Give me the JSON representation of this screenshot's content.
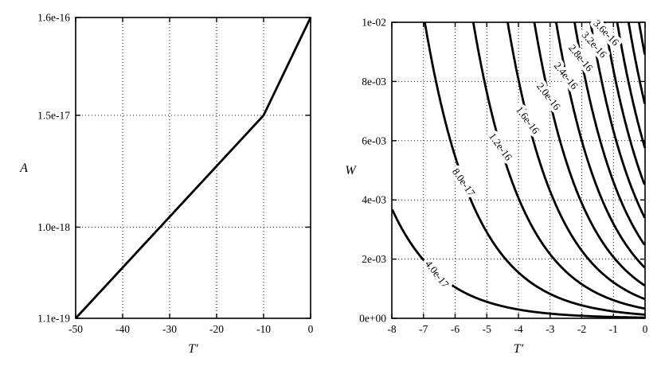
{
  "figure": {
    "bg": "#ffffff",
    "fg": "#000000",
    "grid_color": "#1a1a1a"
  },
  "chart_data": [
    {
      "type": "line",
      "title": "",
      "xlabel": "T′",
      "ylabel": "A",
      "xlim": [
        -50,
        0
      ],
      "xticks": [
        -50,
        -40,
        -30,
        -20,
        -10,
        0
      ],
      "xtick_labels": [
        "-50",
        "-40",
        "-30",
        "-20",
        "-10",
        "0"
      ],
      "yscale": "log",
      "ylim": [
        1.1e-19,
        1.6e-16
      ],
      "yticks": [
        1.1e-19,
        1e-18,
        1.5e-17,
        1.6e-16
      ],
      "ytick_labels": [
        "1.1e-19",
        "1.0e-18",
        "1.5e-17",
        "1.6e-16"
      ],
      "grid": true,
      "legend": false,
      "series": [
        {
          "points": [
            [
              -50,
              1.1e-19
            ],
            [
              -10,
              1.5e-17
            ],
            [
              0,
              1.6e-16
            ]
          ]
        }
      ]
    },
    {
      "type": "contour",
      "title": "",
      "xlabel": "T′",
      "ylabel": "W",
      "xlim": [
        -8,
        0
      ],
      "xticks": [
        -8,
        -7,
        -6,
        -5,
        -4,
        -3,
        -2,
        -1,
        0
      ],
      "xtick_labels": [
        "-8",
        "-7",
        "-6",
        "-5",
        "-4",
        "-3",
        "-2",
        "-1",
        "0"
      ],
      "ylim": [
        0,
        0.01
      ],
      "yticks": [
        0,
        0.002,
        0.004,
        0.006,
        0.008,
        0.01
      ],
      "ytick_labels": [
        "0e+00",
        "2e-03",
        "4e-03",
        "6e-03",
        "8e-03",
        "1e-02"
      ],
      "grid": true,
      "legend": false,
      "field_model": {
        "a": 0.115,
        "b": 0.42,
        "v0": 5.05e-16
      },
      "levels": [
        {
          "value": 4e-17,
          "label": "4.0e-17",
          "label_w": 0.0015,
          "label_angle": 52
        },
        {
          "value": 8e-17,
          "label": "8.0e-17",
          "label_w": 0.0046,
          "label_angle": 55
        },
        {
          "value": 1.2e-16,
          "label": "1.2e-16",
          "label_w": 0.0058,
          "label_angle": 54
        },
        {
          "value": 1.6e-16,
          "label": "1.6e-16",
          "label_w": 0.0067,
          "label_angle": 53
        },
        {
          "value": 2e-16,
          "label": "2.0e-16",
          "label_w": 0.0075,
          "label_angle": 52
        },
        {
          "value": 2.4e-16,
          "label": "2.4e-16",
          "label_w": 0.0082,
          "label_angle": 51
        },
        {
          "value": 2.8e-16,
          "label": "2.8e-16",
          "label_w": 0.0088,
          "label_angle": 50
        },
        {
          "value": 3.2e-16,
          "label": "3.2e-16",
          "label_w": 0.00925,
          "label_angle": 48
        },
        {
          "value": 3.6e-16,
          "label": "3.6e-16",
          "label_w": 0.00965,
          "label_angle": 46
        },
        {
          "value": 4e-16,
          "label": null
        },
        {
          "value": 4.4e-16,
          "label": null
        },
        {
          "value": 4.8e-16,
          "label": null
        }
      ]
    }
  ]
}
